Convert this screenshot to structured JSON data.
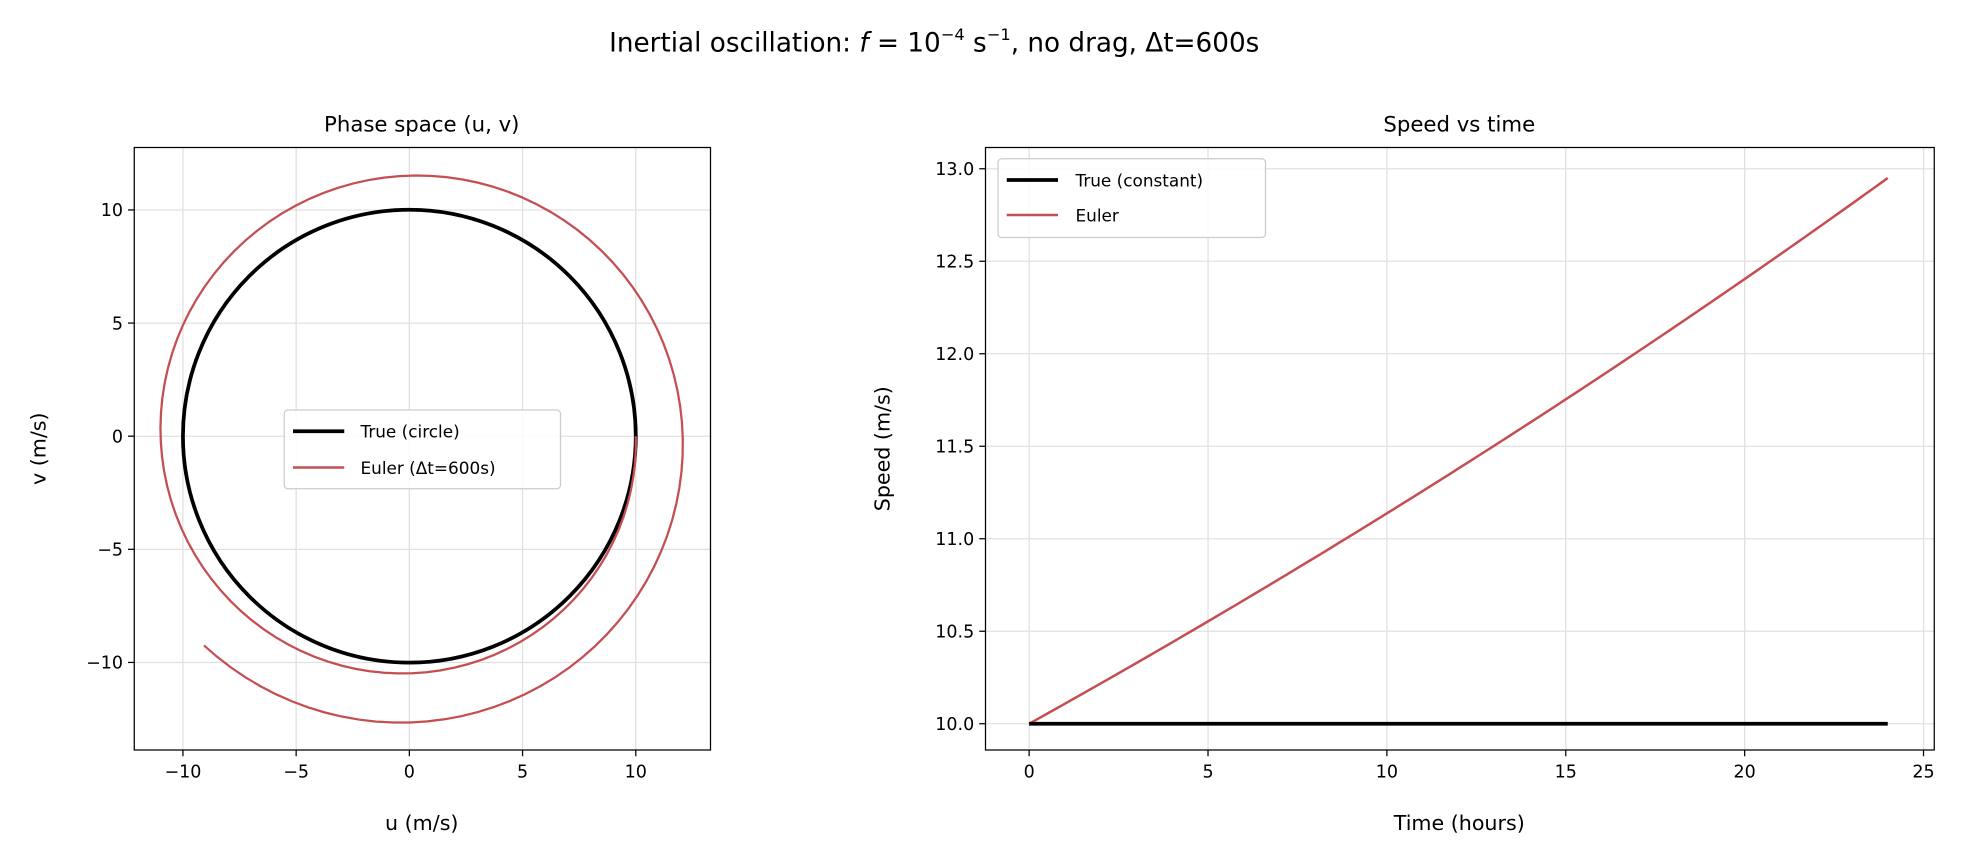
{
  "figure_title": {
    "prefix": "Inertial oscillation: ",
    "f": "f",
    "eq": " = 10",
    "exp1": "−4",
    "unit": " s",
    "exp2": "−1",
    "suffix": ", no drag, Δt=600s"
  },
  "colors": {
    "true": "#000000",
    "euler": "#c44e52",
    "grid": "#e0e0e0"
  },
  "chart_data": [
    {
      "type": "line",
      "title": "Phase space (u, v)",
      "xlabel": "u (m/s)",
      "ylabel": "v (m/s)",
      "xlim": [
        -12.15,
        13.3
      ],
      "ylim": [
        -13.87,
        12.76
      ],
      "xticks": [
        -10,
        -5,
        0,
        5,
        10
      ],
      "xtick_labels": [
        "−10",
        "−5",
        "0",
        "5",
        "10"
      ],
      "yticks": [
        -10,
        -5,
        0,
        5,
        10
      ],
      "ytick_labels": [
        "−10",
        "−5",
        "0",
        "5",
        "10"
      ],
      "grid": true,
      "legend_position": "center",
      "model": {
        "f": 0.0001,
        "dt_s": 600,
        "u0": 10,
        "v0": 0,
        "hours": 24
      },
      "series": [
        {
          "name": "True (circle)",
          "kind": "circle",
          "radius": 10
        },
        {
          "name": "Euler (Δt=600s)",
          "kind": "euler-spiral",
          "start": [
            10,
            0
          ],
          "end": [
            -9.1,
            -9.2
          ]
        }
      ]
    },
    {
      "type": "line",
      "title": "Speed vs time",
      "xlabel": "Time (hours)",
      "ylabel": "Speed (m/s)",
      "xlim": [
        -1.22,
        25.3
      ],
      "ylim": [
        9.858,
        13.115
      ],
      "xticks": [
        0,
        5,
        10,
        15,
        20,
        25
      ],
      "xtick_labels": [
        "0",
        "5",
        "10",
        "15",
        "20",
        "25"
      ],
      "yticks": [
        10.0,
        10.5,
        11.0,
        11.5,
        12.0,
        12.5,
        13.0
      ],
      "ytick_labels": [
        "10.0",
        "10.5",
        "11.0",
        "11.5",
        "12.0",
        "12.5",
        "13.0"
      ],
      "grid": true,
      "legend_position": "upper-left",
      "series": [
        {
          "name": "True (constant)",
          "x": [
            0,
            24
          ],
          "y": [
            10,
            10
          ]
        },
        {
          "name": "Euler",
          "x_range": [
            0,
            24
          ],
          "y_start": 10,
          "y_end": 12.95
        }
      ]
    }
  ]
}
